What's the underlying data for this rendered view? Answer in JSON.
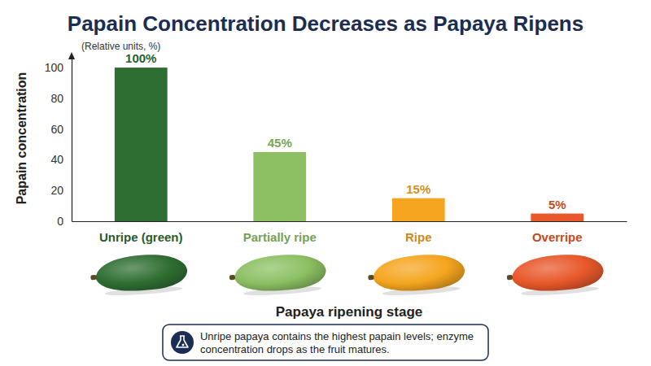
{
  "chart_data": {
    "type": "bar",
    "title": "Papain Concentration Decreases as Papaya Ripens",
    "y_label": "Papain concentration",
    "x_label": "Papaya ripening stage",
    "annotations": [
      "(Relative units, %)",
      "Unripe papaya contains the highest papain levels; enzyme concentration drops as the fruit matures."
    ],
    "categories": [
      "Unripe (green)",
      "Partially ripe",
      "Ripe",
      "Overripe"
    ],
    "values": [
      100,
      45,
      15,
      5
    ],
    "value_labels": [
      "100%",
      "45%",
      "15%",
      "5%"
    ],
    "colors": [
      "#2f6e32",
      "#8cc063",
      "#f5a51f",
      "#e8582a"
    ],
    "ylim": [
      0,
      108
    ],
    "yticks": [
      0,
      20,
      40,
      60,
      80,
      100
    ],
    "grid": false,
    "data_labels": true
  }
}
